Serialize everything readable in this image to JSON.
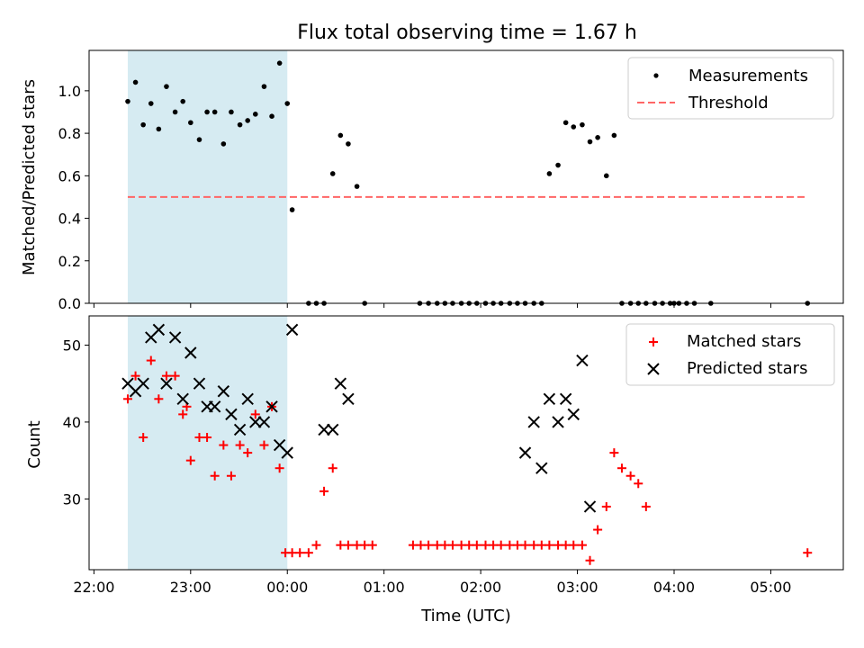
{
  "figure": {
    "title": "Flux total observing time = 1.67 h",
    "xlabel": "Time (UTC)"
  },
  "chart_data": [
    {
      "type": "scatter",
      "name": "ratio-panel",
      "ylabel": "Matched/Predicted stars",
      "xlim": [
        -0.05,
        7.75
      ],
      "ylim": [
        0,
        1.19
      ],
      "xtick_values": [
        0,
        1,
        2,
        3,
        4,
        5,
        6,
        7
      ],
      "xtick_labels": [
        "22:00",
        "23:00",
        "00:00",
        "01:00",
        "02:00",
        "03:00",
        "04:00",
        "05:00"
      ],
      "ytick_values": [
        0.0,
        0.2,
        0.4,
        0.6,
        0.8,
        1.0
      ],
      "ytick_labels": [
        "0.0",
        "0.2",
        "0.4",
        "0.6",
        "0.8",
        "1.0"
      ],
      "shaded_span": [
        0.35,
        2.0
      ],
      "shaded_color": "#add8e6",
      "legend_position": "top-right",
      "series": [
        {
          "name": "Measurements",
          "marker": "dot",
          "color": "#000000",
          "x": [
            0.35,
            0.43,
            0.51,
            0.59,
            0.67,
            0.75,
            0.84,
            0.92,
            1.0,
            1.09,
            1.17,
            1.25,
            1.34,
            1.42,
            1.51,
            1.59,
            1.67,
            1.76,
            1.84,
            1.92,
            2.0,
            2.05,
            2.22,
            2.3,
            2.38,
            2.47,
            2.55,
            2.63,
            2.72,
            2.8,
            3.37,
            3.46,
            3.55,
            3.63,
            3.71,
            3.8,
            3.88,
            3.96,
            4.05,
            4.13,
            4.21,
            4.3,
            4.38,
            4.46,
            4.55,
            4.63,
            4.71,
            4.8,
            4.88,
            4.96,
            5.05,
            5.13,
            5.21,
            5.3,
            5.38,
            5.46,
            5.55,
            5.63,
            5.71,
            5.8,
            5.88,
            5.96,
            6.0,
            6.05,
            6.13,
            6.21,
            6.38,
            7.38
          ],
          "y": [
            0.95,
            1.04,
            0.84,
            0.94,
            0.82,
            1.02,
            0.9,
            0.95,
            0.85,
            0.77,
            0.9,
            0.9,
            0.75,
            0.9,
            0.84,
            0.86,
            0.89,
            1.02,
            0.88,
            1.13,
            0.94,
            0.44,
            0.0,
            0.0,
            0.0,
            0.61,
            0.79,
            0.75,
            0.55,
            0.0,
            0.0,
            0.0,
            0.0,
            0.0,
            0.0,
            0.0,
            0.0,
            0.0,
            0.0,
            0.0,
            0.0,
            0.0,
            0.0,
            0.0,
            0.0,
            0.0,
            0.61,
            0.65,
            0.85,
            0.83,
            0.84,
            0.76,
            0.78,
            0.6,
            0.79,
            0.0,
            0.0,
            0.0,
            0.0,
            0.0,
            0.0,
            0.0,
            0.0,
            0.0,
            0.0,
            0.0,
            0.0,
            0.0
          ]
        },
        {
          "name": "Threshold",
          "marker": "dashed-line",
          "color": "#ff6666",
          "x": [
            0.35,
            7.35
          ],
          "y": [
            0.5,
            0.5
          ]
        }
      ]
    },
    {
      "type": "scatter",
      "name": "count-panel",
      "ylabel": "Count",
      "xlim": [
        -0.05,
        7.75
      ],
      "ylim": [
        20.8,
        53.8
      ],
      "xtick_values": [
        0,
        1,
        2,
        3,
        4,
        5,
        6,
        7
      ],
      "xtick_labels": [
        "22:00",
        "23:00",
        "00:00",
        "01:00",
        "02:00",
        "03:00",
        "04:00",
        "05:00"
      ],
      "ytick_values": [
        30,
        40,
        50
      ],
      "ytick_labels": [
        "30",
        "40",
        "50"
      ],
      "shaded_span": [
        0.35,
        2.0
      ],
      "shaded_color": "#add8e6",
      "legend_position": "top-right",
      "series": [
        {
          "name": "Matched stars",
          "marker": "plus",
          "color": "#ff0000",
          "x": [
            0.35,
            0.43,
            0.51,
            0.59,
            0.67,
            0.75,
            0.84,
            0.92,
            0.96,
            1.0,
            1.09,
            1.17,
            1.25,
            1.34,
            1.42,
            1.51,
            1.59,
            1.67,
            1.76,
            1.84,
            1.92,
            1.98,
            2.05,
            2.13,
            2.22,
            2.3,
            2.38,
            2.47,
            2.55,
            2.63,
            2.72,
            2.8,
            2.88,
            3.3,
            3.38,
            3.46,
            3.55,
            3.63,
            3.71,
            3.8,
            3.88,
            3.96,
            4.05,
            4.13,
            4.21,
            4.3,
            4.38,
            4.46,
            4.55,
            4.63,
            4.71,
            4.8,
            4.88,
            4.96,
            5.05,
            5.13,
            5.21,
            5.3,
            5.38,
            5.46,
            5.55,
            5.63,
            5.71,
            7.38
          ],
          "y": [
            43,
            46,
            38,
            48,
            43,
            46,
            46,
            41,
            42,
            35,
            38,
            38,
            33,
            37,
            33,
            37,
            36,
            41,
            37,
            42,
            34,
            23,
            23,
            23,
            23,
            24,
            31,
            34,
            24,
            24,
            24,
            24,
            24,
            24,
            24,
            24,
            24,
            24,
            24,
            24,
            24,
            24,
            24,
            24,
            24,
            24,
            24,
            24,
            24,
            24,
            24,
            24,
            24,
            24,
            24,
            22,
            26,
            29,
            36,
            34,
            33,
            32,
            29,
            23
          ]
        },
        {
          "name": "Predicted stars",
          "marker": "x",
          "color": "#000000",
          "x": [
            0.35,
            0.43,
            0.51,
            0.59,
            0.67,
            0.75,
            0.84,
            0.92,
            1.0,
            1.09,
            1.17,
            1.25,
            1.34,
            1.42,
            1.51,
            1.59,
            1.67,
            1.76,
            1.84,
            1.92,
            2.0,
            2.05,
            2.38,
            2.47,
            2.55,
            2.63,
            4.46,
            4.55,
            4.63,
            4.71,
            4.8,
            4.88,
            4.96,
            5.05,
            5.13
          ],
          "y": [
            45,
            44,
            45,
            51,
            52,
            45,
            51,
            43,
            49,
            45,
            42,
            42,
            44,
            41,
            39,
            43,
            40,
            40,
            42,
            37,
            36,
            52,
            39,
            39,
            45,
            43,
            36,
            40,
            34,
            43,
            40,
            43,
            41,
            48,
            29
          ]
        }
      ]
    }
  ]
}
